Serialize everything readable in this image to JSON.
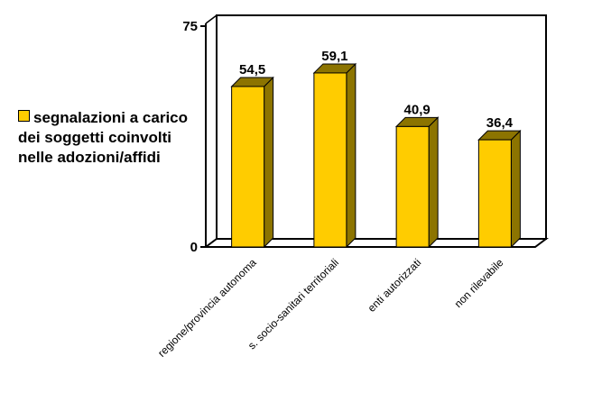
{
  "chart_data": {
    "type": "bar",
    "categories": [
      "regione/provincia autonoma",
      "s. socio-sanitari territoriali",
      "enti autorizzati",
      "non rilevabile"
    ],
    "series": [
      {
        "name": "segnalazioni a carico dei soggetti coinvolti nelle adozioni/affidi",
        "values": [
          54.5,
          59.1,
          40.9,
          36.4
        ],
        "color": "#ffcc00",
        "side_color": "#8c7400",
        "edge_color": "#000000"
      }
    ],
    "data_labels": [
      "54,5",
      "59,1",
      "40,9",
      "36,4"
    ],
    "ylim": [
      0,
      75
    ],
    "y_ticks": [
      "0",
      "75"
    ],
    "xlabel": "",
    "ylabel": "",
    "style": "3d-bar",
    "grid": false,
    "legend_position": "left"
  },
  "legend": {
    "label": "segnalazioni a carico dei soggetti coinvolti nelle adozioni/affidi"
  }
}
